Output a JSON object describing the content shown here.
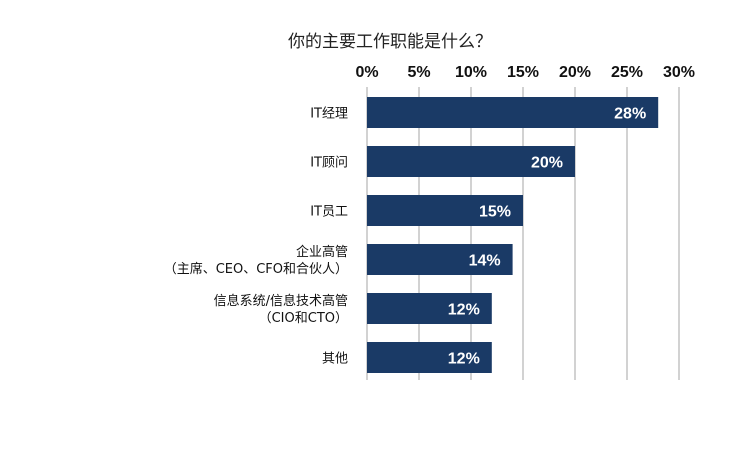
{
  "chart_data": {
    "type": "bar",
    "orientation": "horizontal",
    "title": "你的主要工作职能是什么？",
    "categories": [
      [
        "IT经理"
      ],
      [
        "IT顾问"
      ],
      [
        "IT员工"
      ],
      [
        "企业高管",
        "（主席、CEO、CFO和合伙人）"
      ],
      [
        "信息系统/信息技术高管",
        "（CIO和CTO）"
      ],
      [
        "其他"
      ]
    ],
    "values": [
      28,
      20,
      15,
      14,
      12,
      12
    ],
    "value_labels": [
      "28%",
      "20%",
      "15%",
      "14%",
      "12%",
      "12%"
    ],
    "xlim": [
      0,
      30
    ],
    "xticks": [
      0,
      5,
      10,
      15,
      20,
      25,
      30
    ],
    "xtick_labels": [
      "0%",
      "5%",
      "10%",
      "15%",
      "20%",
      "25%",
      "30%"
    ],
    "axis_position": "top",
    "grid": true,
    "legend": "none",
    "colors": {
      "bar": "#1a3a66",
      "grid": "#a6a6a6",
      "label": "#ffffff"
    }
  }
}
